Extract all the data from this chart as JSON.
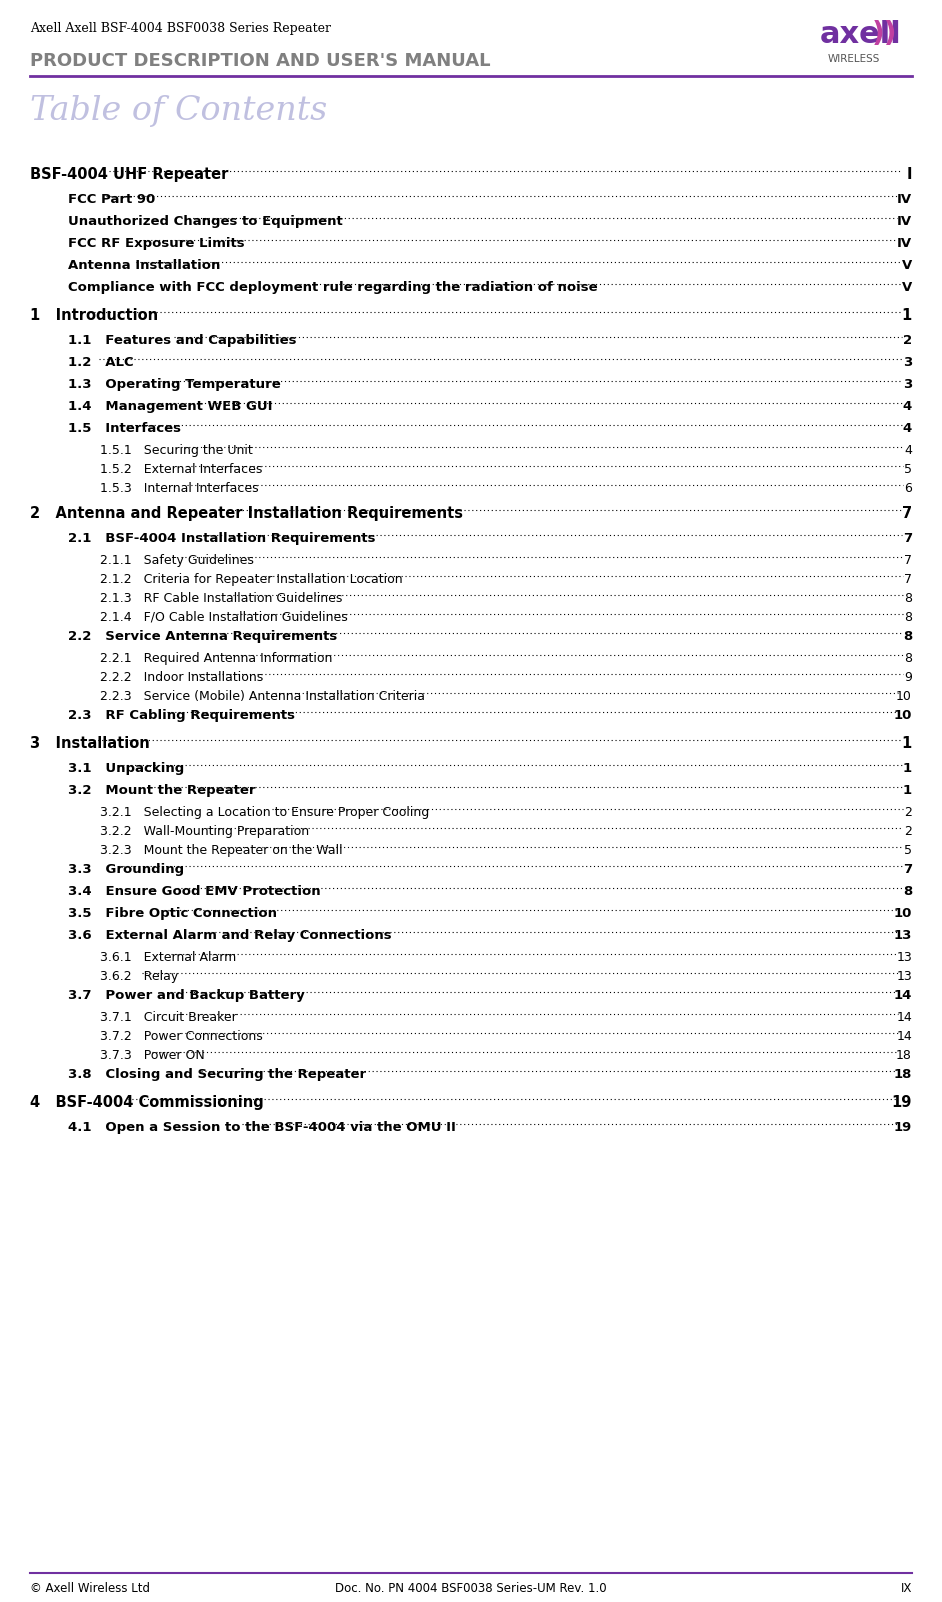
{
  "page_width": 9.42,
  "page_height": 16.02,
  "bg_color": "#ffffff",
  "header_title_line1": "Axell Axell BSF-4004 BSF0038 Series Repeater",
  "header_title_line2": "PRODUCT DESCRIPTION AND USER'S MANUAL",
  "header_title1_color": "#000000",
  "header_title2_color": "#808080",
  "header_line_color": "#7030a0",
  "toc_title": "Table of Contents",
  "toc_title_color": "#c0c0e0",
  "footer_left": "© Axell Wireless Ltd",
  "footer_center": "Doc. No. PN 4004 BSF0038 Series-UM Rev. 1.0",
  "footer_right": "IX",
  "footer_line_color": "#7030a0",
  "entries": [
    {
      "level": 0,
      "text": "BSF-4004 UHF Repeater",
      "page": "I",
      "bold": true
    },
    {
      "level": 1,
      "text": "FCC Part 90",
      "page": "IV",
      "bold": true
    },
    {
      "level": 1,
      "text": "Unauthorized Changes to Equipment",
      "page": "IV",
      "bold": true
    },
    {
      "level": 1,
      "text": "FCC RF Exposure Limits",
      "page": "IV",
      "bold": true
    },
    {
      "level": 1,
      "text": "Antenna Installation",
      "page": "V",
      "bold": true
    },
    {
      "level": 1,
      "text": "Compliance with FCC deployment rule regarding the radiation of noise",
      "page": "V",
      "bold": true
    },
    {
      "level": 0,
      "text": "1   Introduction",
      "page": "1",
      "bold": true
    },
    {
      "level": 1,
      "text": "1.1   Features and Capabilities",
      "page": "2",
      "bold": true
    },
    {
      "level": 1,
      "text": "1.2   ALC",
      "page": "3",
      "bold": true
    },
    {
      "level": 1,
      "text": "1.3   Operating Temperature",
      "page": "3",
      "bold": true
    },
    {
      "level": 1,
      "text": "1.4   Management WEB GUI",
      "page": "4",
      "bold": true
    },
    {
      "level": 1,
      "text": "1.5   Interfaces",
      "page": "4",
      "bold": true
    },
    {
      "level": 2,
      "text": "1.5.1   Securing the Unit",
      "page": "4",
      "bold": false
    },
    {
      "level": 2,
      "text": "1.5.2   External Interfaces",
      "page": "5",
      "bold": false
    },
    {
      "level": 2,
      "text": "1.5.3   Internal Interfaces",
      "page": "6",
      "bold": false
    },
    {
      "level": 0,
      "text": "2   Antenna and Repeater Installation Requirements",
      "page": "7",
      "bold": true
    },
    {
      "level": 1,
      "text": "2.1   BSF-4004 Installation Requirements",
      "page": "7",
      "bold": true
    },
    {
      "level": 2,
      "text": "2.1.1   Safety Guidelines",
      "page": "7",
      "bold": false
    },
    {
      "level": 2,
      "text": "2.1.2   Criteria for Repeater Installation Location",
      "page": "7",
      "bold": false
    },
    {
      "level": 2,
      "text": "2.1.3   RF Cable Installation Guidelines",
      "page": "8",
      "bold": false
    },
    {
      "level": 2,
      "text": "2.1.4   F/O Cable Installation Guidelines",
      "page": "8",
      "bold": false
    },
    {
      "level": 1,
      "text": "2.2   Service Antenna Requirements",
      "page": "8",
      "bold": true
    },
    {
      "level": 2,
      "text": "2.2.1   Required Antenna Information",
      "page": "8",
      "bold": false
    },
    {
      "level": 2,
      "text": "2.2.2   Indoor Installations",
      "page": "9",
      "bold": false
    },
    {
      "level": 2,
      "text": "2.2.3   Service (Mobile) Antenna Installation Criteria",
      "page": "10",
      "bold": false
    },
    {
      "level": 1,
      "text": "2.3   RF Cabling Requirements",
      "page": "10",
      "bold": true
    },
    {
      "level": 0,
      "text": "3   Installation",
      "page": "1",
      "bold": true
    },
    {
      "level": 1,
      "text": "3.1   Unpacking",
      "page": "1",
      "bold": true
    },
    {
      "level": 1,
      "text": "3.2   Mount the Repeater",
      "page": "1",
      "bold": true
    },
    {
      "level": 2,
      "text": "3.2.1   Selecting a Location to Ensure Proper Cooling",
      "page": "2",
      "bold": false
    },
    {
      "level": 2,
      "text": "3.2.2   Wall-Mounting Preparation",
      "page": "2",
      "bold": false
    },
    {
      "level": 2,
      "text": "3.2.3   Mount the Repeater on the Wall",
      "page": "5",
      "bold": false
    },
    {
      "level": 1,
      "text": "3.3   Grounding",
      "page": "7",
      "bold": true
    },
    {
      "level": 1,
      "text": "3.4   Ensure Good EMV Protection",
      "page": "8",
      "bold": true
    },
    {
      "level": 1,
      "text": "3.5   Fibre Optic Connection",
      "page": "10",
      "bold": true
    },
    {
      "level": 1,
      "text": "3.6   External Alarm and Relay Connections",
      "page": "13",
      "bold": true
    },
    {
      "level": 2,
      "text": "3.6.1   External Alarm",
      "page": "13",
      "bold": false
    },
    {
      "level": 2,
      "text": "3.6.2   Relay",
      "page": "13",
      "bold": false
    },
    {
      "level": 1,
      "text": "3.7   Power and Backup Battery",
      "page": "14",
      "bold": true
    },
    {
      "level": 2,
      "text": "3.7.1   Circuit Breaker",
      "page": "14",
      "bold": false
    },
    {
      "level": 2,
      "text": "3.7.2   Power Connections",
      "page": "14",
      "bold": false
    },
    {
      "level": 2,
      "text": "3.7.3   Power ON",
      "page": "18",
      "bold": false
    },
    {
      "level": 1,
      "text": "3.8   Closing and Securing the Repeater",
      "page": "18",
      "bold": true
    },
    {
      "level": 0,
      "text": "4   BSF-4004 Commissioning",
      "page": "19",
      "bold": true
    },
    {
      "level": 1,
      "text": "4.1   Open a Session to the BSF-4004 via the OMU II",
      "page": "19",
      "bold": true
    }
  ]
}
